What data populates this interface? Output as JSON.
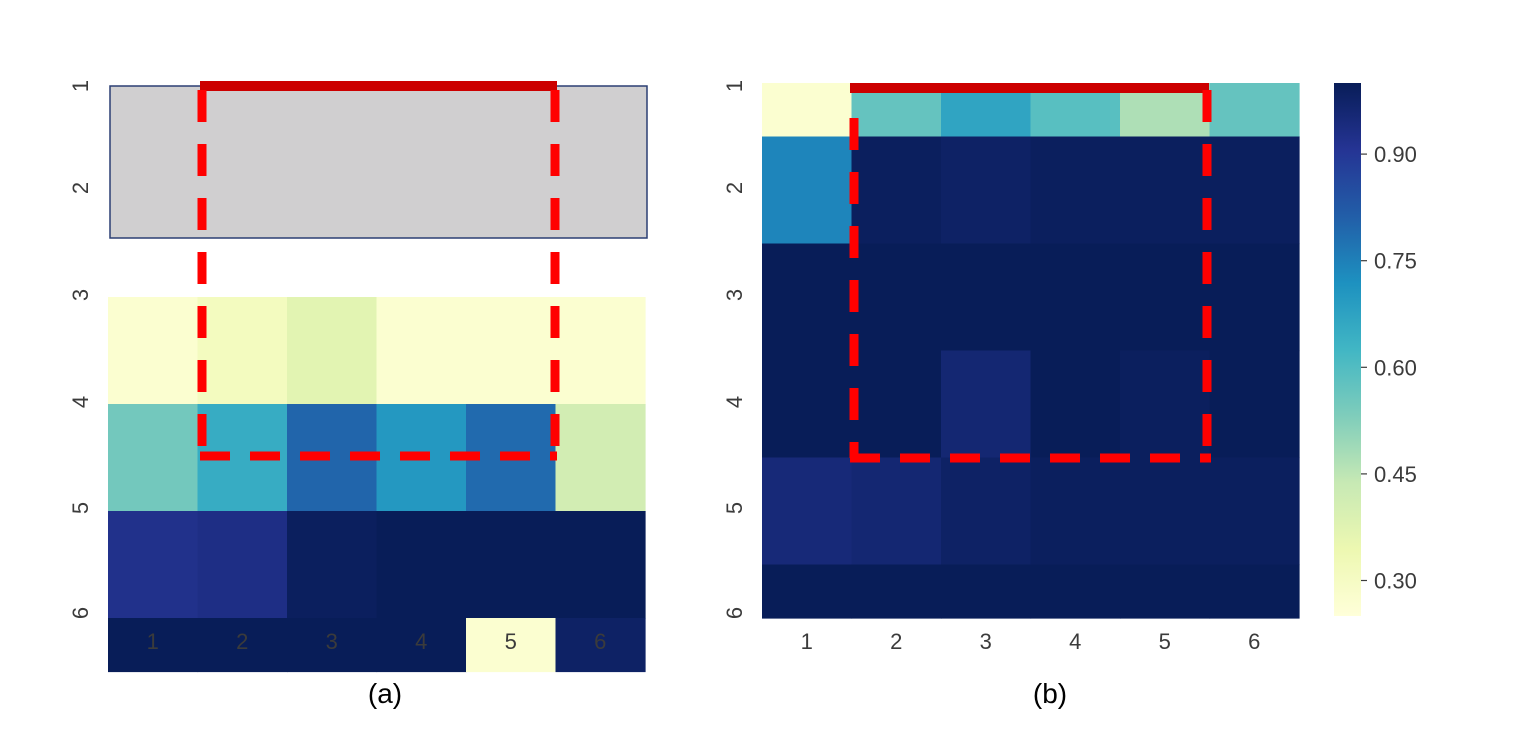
{
  "chart_data": [
    {
      "type": "heatmap",
      "caption": "(a)",
      "x_ticks": [
        "1",
        "2",
        "3",
        "4",
        "5",
        "6"
      ],
      "y_ticks": [
        "1",
        "2",
        "3",
        "4",
        "5",
        "6"
      ],
      "values": [
        [
          null,
          null,
          null,
          null,
          null,
          null
        ],
        [
          0.27,
          0.31,
          0.37,
          0.27,
          0.27,
          0.27
        ],
        [
          0.55,
          0.65,
          0.8,
          0.7,
          0.79,
          0.41
        ],
        [
          0.92,
          0.93,
          0.99,
          1.0,
          1.0,
          1.0
        ],
        [
          1.0,
          1.0,
          1.0,
          1.0,
          0.27,
          0.98
        ]
      ],
      "row_heights": [
        2,
        1,
        1,
        1,
        0.5
      ],
      "masked_fill": "#d0cfd0",
      "highlight_color": "#ff0000"
    },
    {
      "type": "heatmap",
      "caption": "(b)",
      "x_ticks": [
        "1",
        "2",
        "3",
        "4",
        "5",
        "6"
      ],
      "y_ticks": [
        "1",
        "2",
        "3",
        "4",
        "5",
        "6"
      ],
      "values": [
        [
          0.27,
          0.57,
          0.67,
          0.59,
          0.47,
          0.57
        ],
        [
          0.74,
          0.99,
          0.98,
          0.99,
          0.99,
          0.99
        ],
        [
          1.0,
          1.0,
          1.0,
          1.0,
          1.0,
          1.0
        ],
        [
          1.0,
          1.0,
          0.96,
          1.0,
          0.99,
          1.0
        ],
        [
          0.95,
          0.96,
          0.98,
          0.99,
          0.99,
          0.99
        ],
        [
          1.0,
          1.0,
          1.0,
          1.0,
          1.0,
          1.0
        ]
      ],
      "row_heights": [
        0.5,
        1,
        1,
        1,
        1,
        0.5
      ],
      "highlight_color": "#ff0000"
    }
  ],
  "colorbar": {
    "min": 0.25,
    "max": 1.0,
    "ticks": [
      0.3,
      0.45,
      0.6,
      0.75,
      0.9
    ],
    "tick_labels": [
      "0.30",
      "0.45",
      "0.60",
      "0.75",
      "0.90"
    ],
    "colormap": "YlGnBu",
    "stops": [
      "#ffffd9",
      "#edf8b1",
      "#c7e9b4",
      "#7fcdbb",
      "#41b6c4",
      "#1d91c0",
      "#225ea8",
      "#253494",
      "#081d58"
    ]
  }
}
